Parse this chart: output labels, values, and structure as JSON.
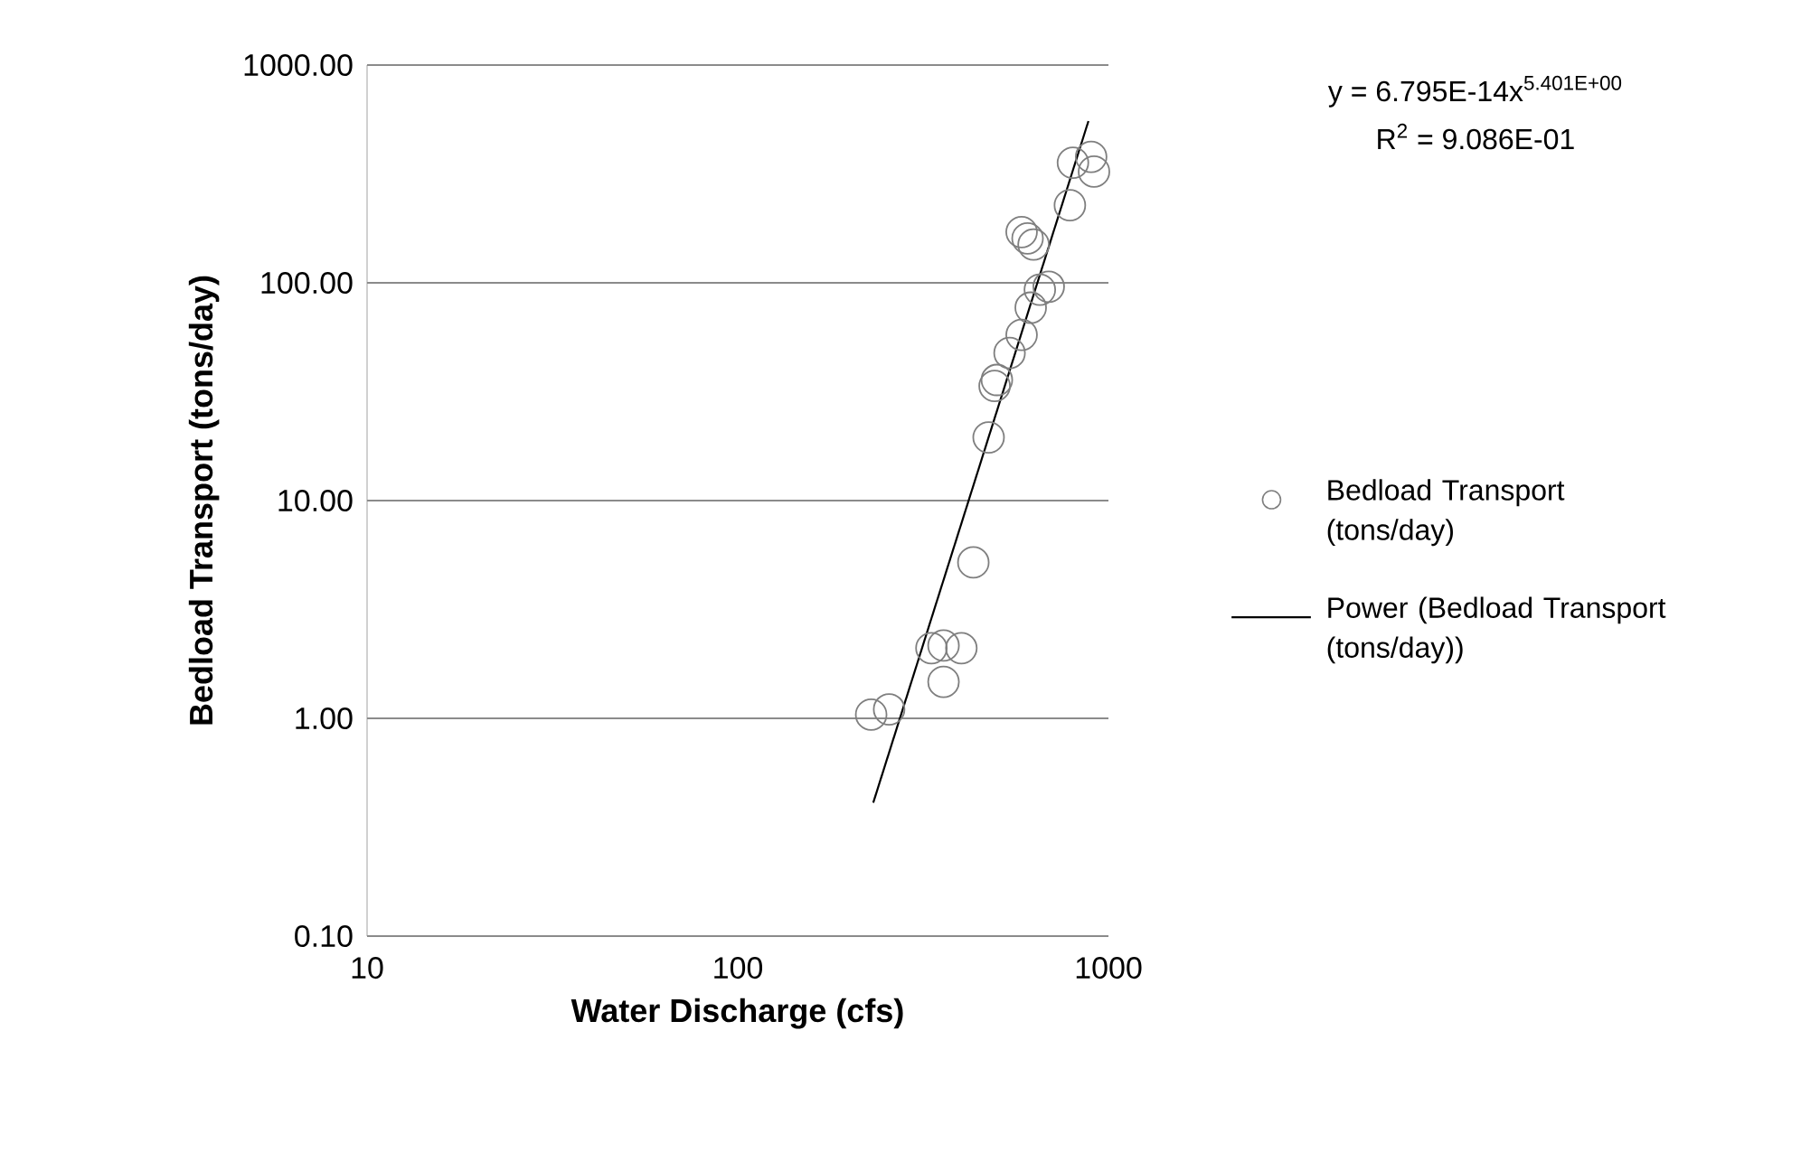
{
  "chart_data": {
    "type": "scatter",
    "xlabel": "Water Discharge (cfs)",
    "ylabel": "Bedload Transport (tons/day)",
    "log": "xy",
    "grid": "y",
    "legend": "right",
    "marker": "circle",
    "xlim": [
      10,
      1000
    ],
    "xticks": [
      10,
      100,
      1000
    ],
    "ylim": [
      0.1,
      1000
    ],
    "yticks": [
      {
        "value": 0.1,
        "label": "0.10"
      },
      {
        "value": 1,
        "label": "1.00"
      },
      {
        "value": 10,
        "label": "10.00"
      },
      {
        "value": 100,
        "label": "100.00"
      },
      {
        "value": 1000,
        "label": "1000.00"
      }
    ],
    "annotations": [
      "y = 6.795E-14x$^{5.401E+00}$",
      "R$^{2}$ = 9.086E-01"
    ],
    "series": [
      {
        "name": "Bedload Transport (tons/day)",
        "color": "#7f7f7f",
        "x": [
          229,
          256,
          333,
          359,
          401,
          359,
          432,
          475,
          493,
          500,
          541,
          583,
          617,
          653,
          690,
          583,
          605,
          628,
          787,
          802,
          898,
          914
        ],
        "values": [
          1.04,
          1.1,
          2.1,
          2.16,
          2.1,
          1.47,
          5.2,
          19.5,
          33.6,
          35.8,
          47.6,
          57.7,
          76.9,
          93,
          96,
          171,
          160,
          150,
          227,
          356,
          379,
          324
        ]
      },
      {
        "name": "Power (Bedload Transport (tons/day))",
        "type": "line",
        "marker": "none",
        "line_style": "solid",
        "color": "#000000",
        "x": [
          232,
          883
        ],
        "values": [
          0.41,
          553
        ]
      }
    ]
  }
}
